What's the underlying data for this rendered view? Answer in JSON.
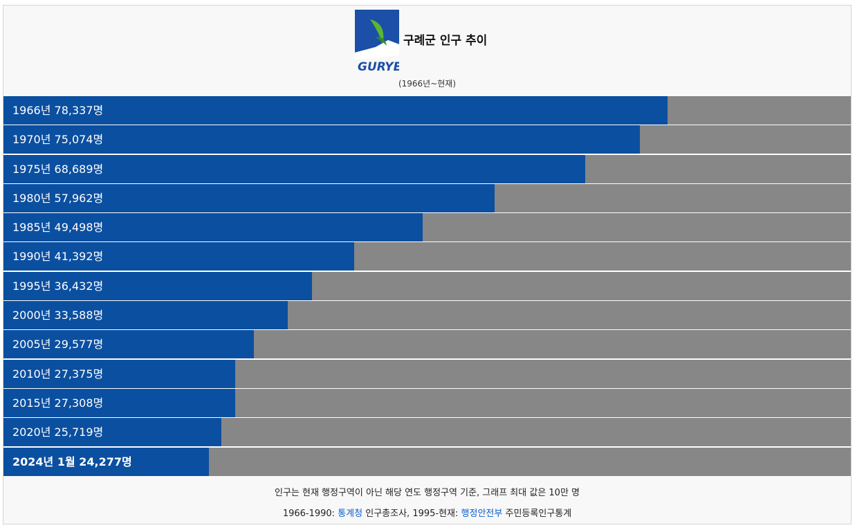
{
  "header": {
    "logo_text": "GURYE"
  },
  "chart_data": {
    "type": "bar",
    "orientation": "horizontal",
    "title": "구례군 인구 추이",
    "subtitle": "(1966년~현재)",
    "categories": [
      "1966년",
      "1970년",
      "1975년",
      "1980년",
      "1985년",
      "1990년",
      "1995년",
      "2000년",
      "2005년",
      "2010년",
      "2015년",
      "2020년",
      "2024년 1월"
    ],
    "values": [
      78337,
      75074,
      68689,
      57962,
      49498,
      41392,
      36432,
      33588,
      29577,
      27375,
      27308,
      25719,
      24277
    ],
    "value_labels": [
      "78,337명",
      "75,074명",
      "68,689명",
      "57,962명",
      "49,498명",
      "41,392명",
      "36,432명",
      "33,588명",
      "29,577명",
      "27,375명",
      "27,308명",
      "25,719명",
      "24,277명"
    ],
    "color": "#0b4fa0",
    "track_color": "#878787",
    "xlim": [
      0,
      100000
    ],
    "bold_last": true
  },
  "footer": {
    "note": "인구는 현재 행정구역이 아닌 해당 연도 행정구역 기준, 그래프 최대 값은 10만 명",
    "source": [
      "1966-1990:",
      "통계청",
      "인구총조사, 1995-현재:",
      "행정안전부",
      "주민등록인구통계"
    ]
  }
}
